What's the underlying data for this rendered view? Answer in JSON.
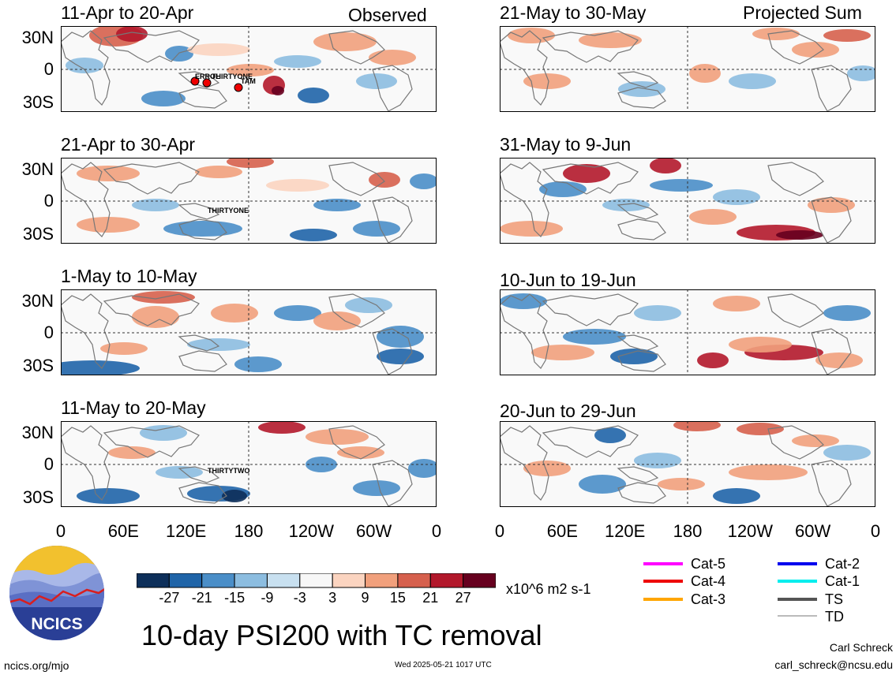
{
  "headers": {
    "left": "Observed",
    "right": "Projected Sum"
  },
  "lat_labels": [
    "30N",
    "0",
    "30S"
  ],
  "lon_labels": [
    "0",
    "60E",
    "120E",
    "180",
    "120W",
    "60W",
    "0"
  ],
  "panels_left": [
    {
      "title": "11-Apr to 20-Apr",
      "storms": [
        "ERROL",
        "THIRTYONE",
        "TAM"
      ]
    },
    {
      "title": "21-Apr to 30-Apr",
      "storms": [
        "THIRTYONE"
      ]
    },
    {
      "title": "1-May to 10-May",
      "storms": []
    },
    {
      "title": "11-May to 20-May",
      "storms": [
        "THIRTYTWO"
      ]
    }
  ],
  "panels_right": [
    {
      "title": "21-May to 30-May"
    },
    {
      "title": "31-May to 9-Jun"
    },
    {
      "title": "10-Jun to 19-Jun"
    },
    {
      "title": "20-Jun to 29-Jun"
    }
  ],
  "colorbar": {
    "labels": [
      "-27",
      "-21",
      "-15",
      "-9",
      "-3",
      "3",
      "9",
      "15",
      "21",
      "27"
    ],
    "colors": [
      "#0d2f5a",
      "#1f64a8",
      "#4a8ec8",
      "#8cbde0",
      "#c8e0f0",
      "#f7f7f7",
      "#fbd4c0",
      "#f1a07c",
      "#d6604d",
      "#b2182b",
      "#67001f"
    ],
    "units": "x10^6 m2 s-1"
  },
  "tc_legend": [
    {
      "label": "Cat-5",
      "color": "#ff00ff"
    },
    {
      "label": "Cat-2",
      "color": "#0000ee"
    },
    {
      "label": "Cat-4",
      "color": "#ee0000"
    },
    {
      "label": "Cat-1",
      "color": "#00eeee"
    },
    {
      "label": "Cat-3",
      "color": "#ffa500"
    },
    {
      "label": "TS",
      "color": "#555555"
    },
    {
      "label": "TD",
      "color": "#bbbbbb"
    }
  ],
  "logo_text": "NCICS",
  "main_title": "10-day PSI200 with TC removal",
  "author": "Carl Schreck",
  "email": "carl_schreck@ncsu.edu",
  "site": "ncics.org/mjo",
  "timestamp": "Wed 2025-05-21 1017 UTC"
}
